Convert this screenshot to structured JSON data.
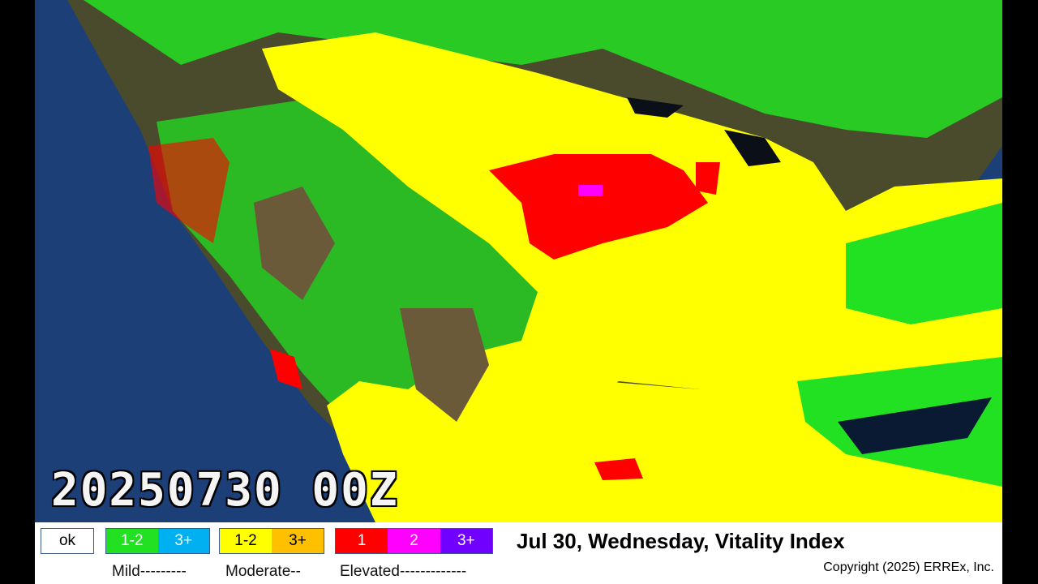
{
  "timestamp": "20250730 00Z",
  "title": "Jul 30, Wednesday, Vitality Index",
  "copyright": "Copyright (2025) ERREx, Inc.",
  "legend": {
    "ok": {
      "label": "ok",
      "color": "#ffffff"
    },
    "mild": {
      "label": "Mild---------",
      "cells": [
        {
          "label": "1-2",
          "color": "#22e022"
        },
        {
          "label": "3+",
          "color": "#00b0f0"
        }
      ]
    },
    "moderate": {
      "label": "Moderate--",
      "cells": [
        {
          "label": "1-2",
          "color": "#ffff00"
        },
        {
          "label": "3+",
          "color": "#ffc000"
        }
      ]
    },
    "elevated": {
      "label": "Elevated-------------",
      "cells": [
        {
          "label": "1",
          "color": "#ff0000"
        },
        {
          "label": "2",
          "color": "#ff00ff"
        },
        {
          "label": "3+",
          "color": "#7000ff"
        }
      ]
    }
  },
  "map_colors": {
    "ocean": "#1d3f78",
    "land": "#5a5030",
    "mild": "#22e022",
    "moderate": "#ffff00",
    "elevated": "#ff0000"
  }
}
